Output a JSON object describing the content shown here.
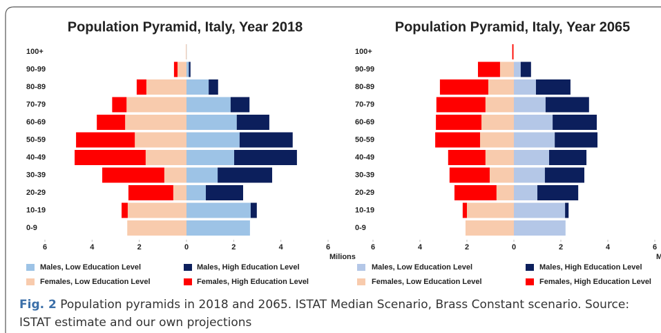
{
  "chart_data": [
    {
      "type": "bar",
      "orientation": "horizontal",
      "stacked": true,
      "title": "Population Pyramid, Italy, Year 2018",
      "xlabel": "Milions",
      "categories": [
        "100+",
        "90-99",
        "80-89",
        "70-79",
        "60-69",
        "50-59",
        "40-49",
        "30-39",
        "20-29",
        "10-19",
        "0-9"
      ],
      "xlim": [
        -6,
        6
      ],
      "xticks": [
        {
          "value": -6,
          "label": "6"
        },
        {
          "value": -4,
          "label": "4"
        },
        {
          "value": -2,
          "label": "2"
        },
        0,
        2,
        4,
        6
      ],
      "series": [
        {
          "name": "Males, Low Education Level",
          "color": "#9dc3e6",
          "values": [
            0.01,
            0.1,
            0.94,
            1.87,
            2.13,
            2.25,
            2.02,
            1.32,
            0.82,
            2.72,
            2.69
          ]
        },
        {
          "name": "Males, High Education Level",
          "color": "#0c1f5c",
          "values": [
            0,
            0.07,
            0.4,
            0.8,
            1.38,
            2.25,
            2.66,
            2.31,
            1.58,
            0.26,
            0
          ]
        },
        {
          "name": "Females, Low Education Level",
          "color": "#f8cbad",
          "values": [
            -0.03,
            -0.38,
            -1.7,
            -2.54,
            -2.6,
            -2.19,
            -1.73,
            -0.94,
            -0.56,
            -2.49,
            -2.51
          ]
        },
        {
          "name": "Females, High Education Level",
          "color": "#ff0000",
          "values": [
            0,
            -0.15,
            -0.41,
            -0.61,
            -1.2,
            -2.49,
            -3.01,
            -2.63,
            -1.9,
            -0.26,
            0
          ]
        }
      ]
    },
    {
      "type": "bar",
      "orientation": "horizontal",
      "stacked": true,
      "title": "Population Pyramid, Italy, Year 2065",
      "xlabel": "Milions",
      "categories": [
        "100+",
        "90-99",
        "80-89",
        "70-79",
        "60-69",
        "50-59",
        "40-49",
        "30-39",
        "20-29",
        "10-19",
        "0-9"
      ],
      "xlim": [
        -6,
        6
      ],
      "xticks": [
        {
          "value": -6,
          "label": "6"
        },
        {
          "value": -4,
          "label": "4"
        },
        {
          "value": -2,
          "label": "2"
        },
        0,
        2,
        4,
        6
      ],
      "series": [
        {
          "name": "Males, Low Education Level",
          "color": "#b4c7e7",
          "values": [
            0,
            0.29,
            0.94,
            1.35,
            1.65,
            1.74,
            1.5,
            1.32,
            1.0,
            2.18,
            2.2
          ]
        },
        {
          "name": "Males, High Education Level",
          "color": "#0c1f5c",
          "values": [
            0,
            0.44,
            1.47,
            1.85,
            1.88,
            1.82,
            1.59,
            1.68,
            1.74,
            0.15,
            0
          ]
        },
        {
          "name": "Females, Low Education Level",
          "color": "#f8cbad",
          "values": [
            -0.02,
            -0.59,
            -1.09,
            -1.21,
            -1.38,
            -1.44,
            -1.21,
            -1.03,
            -0.74,
            -2.0,
            -2.06
          ]
        },
        {
          "name": "Females, High Education Level",
          "color": "#ff0000",
          "values": [
            -0.05,
            -0.94,
            -2.06,
            -2.09,
            -1.94,
            -1.91,
            -1.59,
            -1.71,
            -1.79,
            -0.18,
            0
          ]
        }
      ]
    }
  ],
  "caption": {
    "label": "Fig. 2",
    "text": "Population pyramids in 2018 and 2065. ISTAT Median Scenario, Brass Constant scenario. Source: ISTAT estimate and our own projections"
  }
}
